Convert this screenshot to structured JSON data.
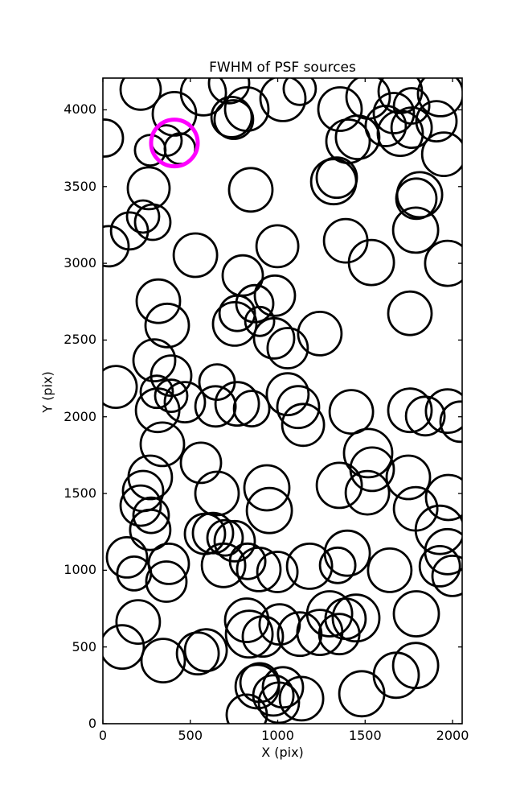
{
  "figure": {
    "title": "FWHM of PSF sources",
    "xlabel": "X (pix)",
    "ylabel": "Y (pix)",
    "background_color": "#ffffff",
    "frame_color": "#000000"
  },
  "chart_data": {
    "type": "scatter",
    "title": "FWHM of PSF sources",
    "xlabel": "X (pix)",
    "ylabel": "Y (pix)",
    "xlim": [
      0,
      2055
    ],
    "ylim": [
      0,
      4207
    ],
    "xticks": [
      0,
      500,
      1000,
      1500,
      2000
    ],
    "yticks": [
      0,
      500,
      1000,
      1500,
      2000,
      2500,
      3000,
      3500,
      4000
    ],
    "grid": false,
    "legend": "none",
    "marker": "open-circle",
    "marker_color": "#000000",
    "marker_linewidth": 2.8,
    "points_format": "[x_pix, y_pix, marker_radius_screen_px]",
    "points": [
      [
        216,
        4132,
        25
      ],
      [
        409,
        3974,
        27
      ],
      [
        9,
        3816,
        23
      ],
      [
        363,
        3800,
        19
      ],
      [
        441,
        3747,
        19
      ],
      [
        271,
        3737,
        19
      ],
      [
        575,
        4111,
        28
      ],
      [
        722,
        4174,
        25
      ],
      [
        736,
        3953,
        25
      ],
      [
        749,
        3937,
        24
      ],
      [
        823,
        4005,
        27
      ],
      [
        1030,
        4074,
        28
      ],
      [
        1126,
        4137,
        20
      ],
      [
        1356,
        4005,
        27
      ],
      [
        1517,
        4084,
        27
      ],
      [
        1457,
        3821,
        27
      ],
      [
        1402,
        3795,
        27
      ],
      [
        1320,
        3532,
        28
      ],
      [
        1338,
        3558,
        25
      ],
      [
        1664,
        3979,
        25
      ],
      [
        1766,
        4026,
        22
      ],
      [
        1701,
        4121,
        27
      ],
      [
        1766,
        3884,
        25
      ],
      [
        1701,
        3847,
        28
      ],
      [
        1618,
        3895,
        25
      ],
      [
        1931,
        4105,
        28
      ],
      [
        1908,
        3926,
        25
      ],
      [
        1950,
        3711,
        27
      ],
      [
        1812,
        3447,
        28
      ],
      [
        1793,
        3421,
        25
      ],
      [
        1789,
        3216,
        28
      ],
      [
        1972,
        3000,
        28
      ],
      [
        846,
        3479,
        27
      ],
      [
        262,
        3489,
        26
      ],
      [
        230,
        3305,
        20
      ],
      [
        285,
        3268,
        22
      ],
      [
        152,
        3211,
        23
      ],
      [
        32,
        3111,
        25
      ],
      [
        529,
        3053,
        27
      ],
      [
        998,
        3111,
        26
      ],
      [
        1389,
        3147,
        27
      ],
      [
        1536,
        3005,
        28
      ],
      [
        800,
        2921,
        25
      ],
      [
        317,
        2753,
        27
      ],
      [
        368,
        2595,
        27
      ],
      [
        754,
        2605,
        27
      ],
      [
        768,
        2674,
        22
      ],
      [
        869,
        2737,
        23
      ],
      [
        897,
        2621,
        18
      ],
      [
        984,
        2789,
        25
      ],
      [
        979,
        2511,
        25
      ],
      [
        1241,
        2542,
        27
      ],
      [
        1756,
        2674,
        27
      ],
      [
        294,
        2368,
        26
      ],
      [
        391,
        2268,
        25
      ],
      [
        74,
        2195,
        26
      ],
      [
        653,
        2226,
        22
      ],
      [
        1057,
        2447,
        25
      ],
      [
        308,
        2163,
        20
      ],
      [
        391,
        2137,
        20
      ],
      [
        313,
        2042,
        27
      ],
      [
        469,
        2095,
        25
      ],
      [
        644,
        2068,
        25
      ],
      [
        768,
        2084,
        27
      ],
      [
        851,
        2053,
        22
      ],
      [
        1057,
        2147,
        26
      ],
      [
        1117,
        2063,
        26
      ],
      [
        1145,
        1947,
        26
      ],
      [
        1421,
        2032,
        27
      ],
      [
        1756,
        2042,
        27
      ],
      [
        1844,
        2005,
        24
      ],
      [
        1972,
        2037,
        27
      ],
      [
        2046,
        1968,
        25
      ],
      [
        340,
        1821,
        27
      ],
      [
        561,
        1700,
        25
      ],
      [
        271,
        1605,
        27
      ],
      [
        230,
        1516,
        25
      ],
      [
        216,
        1421,
        25
      ],
      [
        276,
        1358,
        22
      ],
      [
        271,
        1263,
        25
      ],
      [
        653,
        1500,
        27
      ],
      [
        1517,
        1763,
        30
      ],
      [
        1540,
        1658,
        27
      ],
      [
        1352,
        1553,
        28
      ],
      [
        1513,
        1505,
        27
      ],
      [
        1747,
        1605,
        27
      ],
      [
        1789,
        1400,
        27
      ],
      [
        1977,
        1474,
        28
      ],
      [
        938,
        1537,
        28
      ],
      [
        952,
        1389,
        28
      ],
      [
        630,
        1242,
        25
      ],
      [
        584,
        1237,
        25
      ],
      [
        699,
        1211,
        22
      ],
      [
        754,
        1189,
        25
      ],
      [
        138,
        1084,
        25
      ],
      [
        377,
        1042,
        25
      ],
      [
        690,
        1032,
        27
      ],
      [
        892,
        1005,
        27
      ],
      [
        828,
        1058,
        22
      ],
      [
        179,
        979,
        21
      ],
      [
        363,
        926,
        25
      ],
      [
        1927,
        1263,
        30
      ],
      [
        1972,
        1121,
        28
      ],
      [
        1182,
        1026,
        28
      ],
      [
        1343,
        1032,
        22
      ],
      [
        1398,
        1111,
        28
      ],
      [
        1641,
        1000,
        27
      ],
      [
        998,
        989,
        25
      ],
      [
        1927,
        1026,
        25
      ],
      [
        2000,
        963,
        25
      ],
      [
        202,
        663,
        27
      ],
      [
        110,
        500,
        27
      ],
      [
        345,
        411,
        27
      ],
      [
        543,
        458,
        26
      ],
      [
        589,
        479,
        26
      ],
      [
        837,
        584,
        29
      ],
      [
        823,
        674,
        27
      ],
      [
        915,
        568,
        25
      ],
      [
        1011,
        647,
        25
      ],
      [
        1126,
        584,
        27
      ],
      [
        1297,
        716,
        28
      ],
      [
        1388,
        684,
        25
      ],
      [
        1241,
        595,
        28
      ],
      [
        1352,
        584,
        25
      ],
      [
        1448,
        689,
        29
      ],
      [
        1793,
        716,
        28
      ],
      [
        1678,
        316,
        28
      ],
      [
        1789,
        379,
        28
      ],
      [
        1481,
        195,
        28
      ],
      [
        883,
        242,
        27
      ],
      [
        897,
        268,
        24
      ],
      [
        975,
        184,
        25
      ],
      [
        1030,
        237,
        25
      ],
      [
        1007,
        137,
        25
      ],
      [
        1136,
        163,
        27
      ],
      [
        823,
        58,
        25
      ]
    ],
    "highlight": {
      "x": 409,
      "y": 3784,
      "marker_radius_screen_px": 29,
      "color": "#ff00ff",
      "linewidth": 5
    }
  }
}
